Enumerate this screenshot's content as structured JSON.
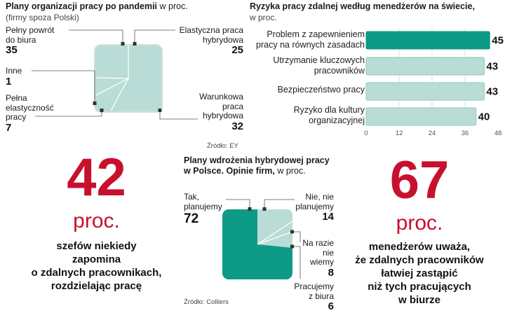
{
  "chart_data": [
    {
      "type": "pie",
      "title": "Plany organizacji pracy po pandemii",
      "title_unit": "w proc.",
      "subtitle": "(firmy spoza Polski)",
      "slices": [
        {
          "label": "Pełny powrót do biura",
          "value": 35
        },
        {
          "label": "Elastyczna praca hybrydowa",
          "value": 25
        },
        {
          "label": "Inne",
          "value": 1
        },
        {
          "label": "Pełna elastyczność pracy",
          "value": 7
        },
        {
          "label": "Warunkowa praca hybrydowa",
          "value": 32
        }
      ],
      "source": "Źródło: EY",
      "colors": {
        "fill": "#b9dcd6",
        "stroke": "#ffffff"
      }
    },
    {
      "type": "bar",
      "orientation": "horizontal",
      "title": "Ryzyka pracy zdalnej według menedżerów na świecie,",
      "subtitle": "w proc.",
      "categories": [
        "Problem z zapewnieniem pracy na równych zasadach",
        "Utrzymanie kluczowych pracowników",
        "Bezpieczeństwo pracy",
        "Ryzyko dla kultury organizacyjnej"
      ],
      "values": [
        45,
        43,
        43,
        40
      ],
      "xlim": [
        0,
        48
      ],
      "xticks": [
        "0",
        "12",
        "24",
        "36",
        "48"
      ],
      "colors": {
        "highlight": "#0d9a86",
        "normal": "#b9dcd6",
        "border": "#8fc8bf"
      }
    },
    {
      "type": "pie",
      "title": "Plany wdrożenia hybrydowej pracy w Polsce. Opinie firm,",
      "title_unit": "w proc.",
      "slices": [
        {
          "label": "Tak, planujemy",
          "value": 72
        },
        {
          "label": "Nie, nie planujemy",
          "value": 14
        },
        {
          "label": "Na razie nie wiemy",
          "value": 8
        },
        {
          "label": "Pracujemy z biura",
          "value": 6
        }
      ],
      "source": "Źródło: Colliers",
      "colors": {
        "main": "#0d9a86",
        "other": "#b9dcd6"
      }
    }
  ],
  "pie1": {
    "title_bold": "Plany organizacji pracy po pandemii",
    "title_unit": "w proc.",
    "subtitle": "(firmy spoza Polski)",
    "l1a": "Pełny powrót",
    "l1b": "do biura",
    "v1": "35",
    "l2a": "Elastyczna praca",
    "l2b": "hybrydowa",
    "v2": "25",
    "l3a": "Inne",
    "v3": "1",
    "l4a": "Pełna",
    "l4b": "elastyczność",
    "l4c": "pracy",
    "v4": "7",
    "l5a": "Warunkowa",
    "l5b": "praca",
    "l5c": "hybrydowa",
    "v5": "32",
    "source": "Źródło: EY"
  },
  "bars": {
    "title_bold": "Ryzyka pracy zdalnej według menedżerów na świecie,",
    "subtitle": "w proc.",
    "items": [
      {
        "a": "Problem z zapewnieniem",
        "b": "pracy na równych zasadach",
        "v": "45"
      },
      {
        "a": "Utrzymanie kluczowych",
        "b": "pracowników",
        "v": "43"
      },
      {
        "a": "Bezpieczeństwo pracy",
        "b": "",
        "v": "43"
      },
      {
        "a": "Ryzyko dla kultury",
        "b": "organizacyjnej",
        "v": "40"
      }
    ],
    "ticks": [
      "0",
      "12",
      "24",
      "36",
      "48"
    ]
  },
  "pie2": {
    "title_line1": "Plany wdrożenia hybrydowej pracy",
    "title_line2": "w Polsce. Opinie firm,",
    "title_unit": "w proc.",
    "l1a": "Tak,",
    "l1b": "planujemy",
    "v1": "72",
    "l2a": "Nie, nie",
    "l2b": "planujemy",
    "v2": "14",
    "l3a": "Na razie",
    "l3b": "nie",
    "l3c": "wiemy",
    "v3": "8",
    "l4a": "Pracujemy",
    "l4b": "z biura",
    "v4": "6",
    "source": "Źródło: Colliers"
  },
  "left_stat": {
    "number": "42",
    "unit": "proc.",
    "lines": [
      "szefów niekiedy",
      "zapomina",
      "o zdalnych pracownikach,",
      "rozdzielając pracę"
    ]
  },
  "right_stat": {
    "number": "67",
    "unit": "proc.",
    "lines": [
      "menedżerów uważa,",
      "że zdalnych pracowników",
      "łatwiej zastąpić",
      "niż tych pracujących",
      "w biurze"
    ]
  }
}
